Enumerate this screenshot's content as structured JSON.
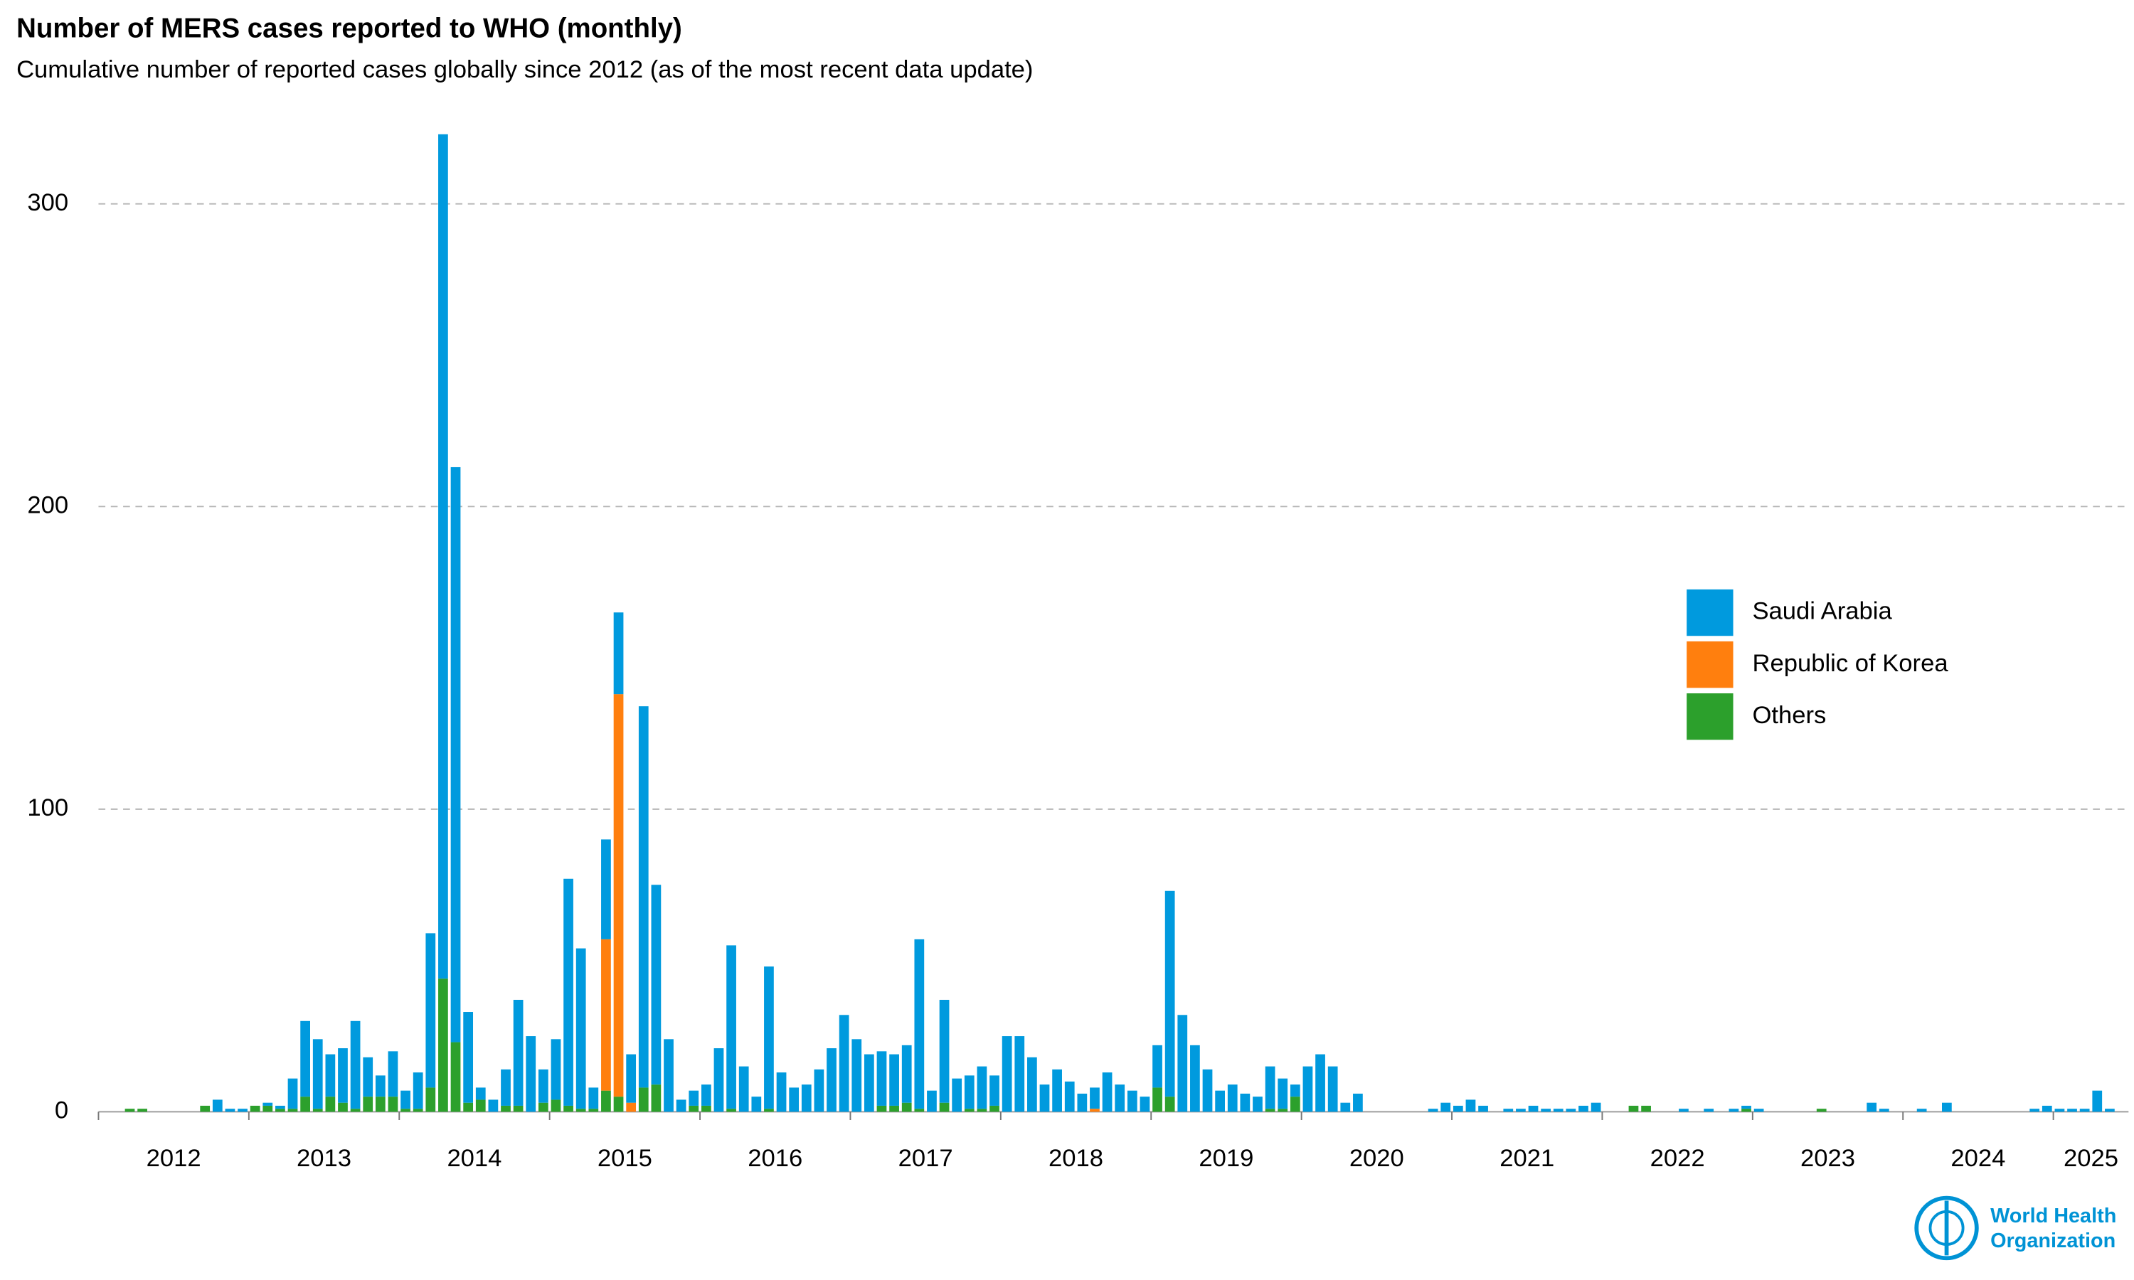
{
  "chart_data": {
    "type": "stacked_bar",
    "title": "Number of MERS cases reported to WHO (monthly)",
    "subtitle": "Cumulative number of reported cases globally since 2012 (as of the most recent data update)",
    "categories": [
      "2012",
      null,
      null,
      null,
      null,
      null,
      null,
      null,
      null,
      null,
      null,
      null,
      "2013",
      null,
      null,
      null,
      null,
      null,
      null,
      null,
      null,
      null,
      null,
      null,
      "2014",
      null,
      null,
      null,
      null,
      null,
      null,
      null,
      null,
      null,
      null,
      null,
      "2015",
      null,
      null,
      null,
      null,
      null,
      null,
      null,
      null,
      null,
      null,
      null,
      "2016",
      null,
      null,
      null,
      null,
      null,
      null,
      null,
      null,
      null,
      null,
      null,
      "2017",
      null,
      null,
      null,
      null,
      null,
      null,
      null,
      null,
      null,
      null,
      null,
      "2018",
      null,
      null,
      null,
      null,
      null,
      null,
      null,
      null,
      null,
      null,
      null,
      "2019",
      null,
      null,
      null,
      null,
      null,
      null,
      null,
      null,
      null,
      null,
      null,
      "2020",
      null,
      null,
      null,
      null,
      null,
      null,
      null,
      null,
      null,
      null,
      null,
      "2021",
      null,
      null,
      null,
      null,
      null,
      null,
      null,
      null,
      null,
      null,
      null,
      "2022",
      null,
      null,
      null,
      null,
      null,
      null,
      null,
      null,
      null,
      null,
      null,
      "2023",
      null,
      null,
      null,
      null,
      null,
      null,
      null,
      null,
      null,
      null,
      null,
      "2024",
      null,
      null,
      null,
      null,
      null,
      null,
      null,
      null,
      null,
      null,
      null,
      "2025",
      null,
      null,
      null,
      null,
      null
    ],
    "series": [
      {
        "name": "Saudi Arabia",
        "color": "#009ade",
        "values": [
          0,
          0,
          0,
          0,
          0,
          0,
          0,
          0,
          0,
          4,
          1,
          1,
          0,
          1,
          1,
          10,
          25,
          23,
          14,
          18,
          29,
          13,
          7,
          15,
          6,
          12,
          51,
          279,
          190,
          30,
          4,
          4,
          12,
          35,
          25,
          11,
          20,
          75,
          53,
          7,
          33,
          27,
          16,
          126,
          66,
          24,
          4,
          5,
          7,
          21,
          54,
          15,
          5,
          47,
          13,
          8,
          9,
          14,
          21,
          32,
          24,
          19,
          18,
          17,
          19,
          56,
          7,
          34,
          11,
          11,
          14,
          10,
          25,
          25,
          18,
          9,
          14,
          10,
          6,
          7,
          13,
          9,
          7,
          5,
          14,
          68,
          32,
          22,
          14,
          7,
          9,
          6,
          5,
          14,
          10,
          4,
          15,
          19,
          15,
          3,
          6,
          0,
          0,
          0,
          0,
          0,
          1,
          3,
          2,
          4,
          2,
          0,
          1,
          1,
          2,
          1,
          1,
          1,
          2,
          3,
          0,
          0,
          0,
          0,
          0,
          0,
          1,
          0,
          1,
          0,
          1,
          1,
          1,
          0,
          0,
          0,
          0,
          0,
          0,
          0,
          0,
          3,
          1,
          0,
          0,
          1,
          0,
          3,
          0,
          0,
          0,
          0,
          0,
          0,
          1,
          2,
          1,
          1,
          1,
          7,
          1,
          0
        ]
      },
      {
        "name": "Republic of Korea",
        "color": "#ff7f0e",
        "values": [
          0,
          0,
          0,
          0,
          0,
          0,
          0,
          0,
          0,
          0,
          0,
          0,
          0,
          0,
          0,
          0,
          0,
          0,
          0,
          0,
          0,
          0,
          0,
          0,
          0,
          0,
          0,
          0,
          0,
          0,
          0,
          0,
          0,
          0,
          0,
          0,
          0,
          0,
          0,
          0,
          50,
          133,
          3,
          0,
          0,
          0,
          0,
          0,
          0,
          0,
          0,
          0,
          0,
          0,
          0,
          0,
          0,
          0,
          0,
          0,
          0,
          0,
          0,
          0,
          0,
          0,
          0,
          0,
          0,
          0,
          0,
          0,
          0,
          0,
          0,
          0,
          0,
          0,
          0,
          1,
          0,
          0,
          0,
          0,
          0,
          0,
          0,
          0,
          0,
          0,
          0,
          0,
          0,
          0,
          0,
          0,
          0,
          0,
          0,
          0,
          0,
          0,
          0,
          0,
          0,
          0,
          0,
          0,
          0,
          0,
          0,
          0,
          0,
          0,
          0,
          0,
          0,
          0,
          0,
          0,
          0,
          0,
          0,
          0,
          0,
          0,
          0,
          0,
          0,
          0,
          0,
          0,
          0,
          0,
          0,
          0,
          0,
          0,
          0,
          0,
          0,
          0,
          0,
          0,
          0,
          0,
          0,
          0,
          0,
          0,
          0,
          0,
          0,
          0,
          0,
          0,
          0,
          0,
          0,
          0,
          0,
          0
        ]
      },
      {
        "name": "Others",
        "color": "#2ca02c",
        "values": [
          0,
          0,
          1,
          1,
          0,
          0,
          0,
          0,
          2,
          0,
          0,
          0,
          2,
          2,
          1,
          1,
          5,
          1,
          5,
          3,
          1,
          5,
          5,
          5,
          1,
          1,
          8,
          44,
          23,
          3,
          4,
          0,
          2,
          2,
          0,
          3,
          4,
          2,
          1,
          1,
          7,
          5,
          0,
          8,
          9,
          0,
          0,
          2,
          2,
          0,
          1,
          0,
          0,
          1,
          0,
          0,
          0,
          0,
          0,
          0,
          0,
          0,
          2,
          2,
          3,
          1,
          0,
          3,
          0,
          1,
          1,
          2,
          0,
          0,
          0,
          0,
          0,
          0,
          0,
          0,
          0,
          0,
          0,
          0,
          8,
          5,
          0,
          0,
          0,
          0,
          0,
          0,
          0,
          1,
          1,
          5,
          0,
          0,
          0,
          0,
          0,
          0,
          0,
          0,
          0,
          0,
          0,
          0,
          0,
          0,
          0,
          0,
          0,
          0,
          0,
          0,
          0,
          0,
          0,
          0,
          0,
          0,
          2,
          2,
          0,
          0,
          0,
          0,
          0,
          0,
          0,
          1,
          0,
          0,
          0,
          0,
          0,
          1,
          0,
          0,
          0,
          0,
          0,
          0,
          0,
          0,
          0,
          0,
          0,
          0,
          0,
          0,
          0,
          0,
          0,
          0,
          0,
          0,
          0,
          0,
          0,
          0
        ]
      }
    ],
    "ylim": [
      0,
      330
    ],
    "yticks": [
      0,
      100,
      200,
      300
    ],
    "grid": true,
    "legend": "right",
    "logo_text": [
      "World Health",
      "Organization"
    ]
  }
}
